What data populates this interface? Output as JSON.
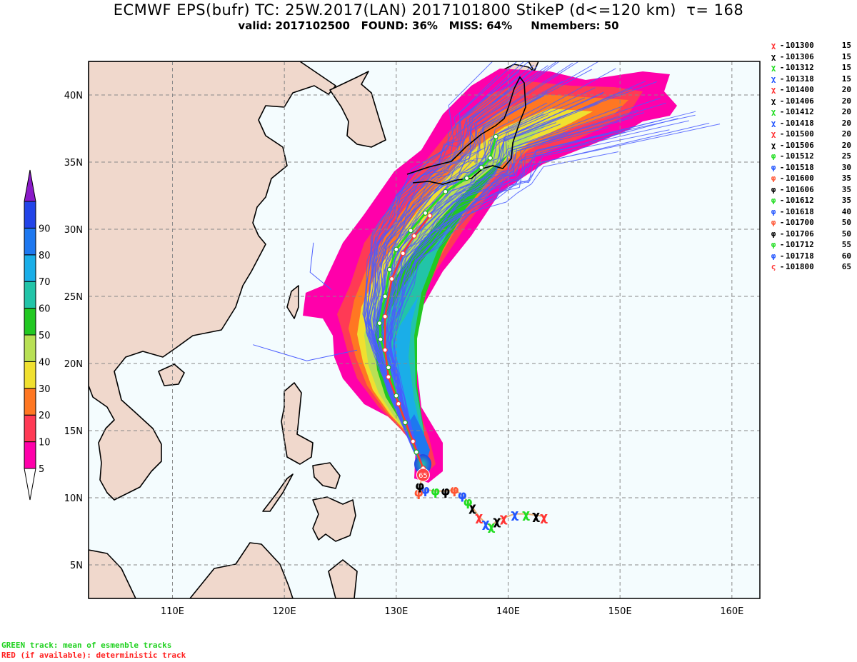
{
  "header": {
    "title": "ECMWF EPS(bufr) TC: 25W.2017(LAN) 2017101800 StikeP (d<=120 km)  τ= 168",
    "subtitle": "valid: 2017102500   FOUND: 36%   MISS: 64%     Nmembers: 50"
  },
  "colorbar": {
    "levels": [
      {
        "label": "5",
        "color": "#ff00aa"
      },
      {
        "label": "10",
        "color": "#ff3a55"
      },
      {
        "label": "20",
        "color": "#ff7722"
      },
      {
        "label": "30",
        "color": "#f0e030"
      },
      {
        "label": "40",
        "color": "#b8e055"
      },
      {
        "label": "50",
        "color": "#22c822"
      },
      {
        "label": "60",
        "color": "#22c4a8"
      },
      {
        "label": "70",
        "color": "#1aaee8"
      },
      {
        "label": "80",
        "color": "#1e78f0"
      },
      {
        "label": "90",
        "color": "#2244e8"
      }
    ],
    "top_color": "#8a1ac8"
  },
  "map": {
    "ocean_color": "#f4fcfe",
    "land_color": "#f0d8cc",
    "lat_ticks": [
      "5N",
      "10N",
      "15N",
      "20N",
      "25N",
      "30N",
      "35N",
      "40N"
    ],
    "lon_ticks": [
      "110E",
      "120E",
      "130E",
      "140E",
      "150E",
      "160E"
    ]
  },
  "legend": {
    "entries": [
      {
        "time": "101300",
        "wind": "15",
        "color": "#ff3333",
        "glyph": "χ"
      },
      {
        "time": "101306",
        "wind": "15",
        "color": "#000000",
        "glyph": "χ"
      },
      {
        "time": "101312",
        "wind": "15",
        "color": "#22dd22",
        "glyph": "χ"
      },
      {
        "time": "101318",
        "wind": "15",
        "color": "#2255ff",
        "glyph": "χ"
      },
      {
        "time": "101400",
        "wind": "20",
        "color": "#ff3333",
        "glyph": "χ"
      },
      {
        "time": "101406",
        "wind": "20",
        "color": "#000000",
        "glyph": "χ"
      },
      {
        "time": "101412",
        "wind": "20",
        "color": "#22dd22",
        "glyph": "χ"
      },
      {
        "time": "101418",
        "wind": "20",
        "color": "#2255ff",
        "glyph": "χ"
      },
      {
        "time": "101500",
        "wind": "20",
        "color": "#ff3333",
        "glyph": "χ"
      },
      {
        "time": "101506",
        "wind": "20",
        "color": "#000000",
        "glyph": "χ"
      },
      {
        "time": "101512",
        "wind": "25",
        "color": "#22dd22",
        "glyph": "φ"
      },
      {
        "time": "101518",
        "wind": "30",
        "color": "#2255ff",
        "glyph": "φ"
      },
      {
        "time": "101600",
        "wind": "35",
        "color": "#ff5533",
        "glyph": "φ"
      },
      {
        "time": "101606",
        "wind": "35",
        "color": "#000000",
        "glyph": "φ"
      },
      {
        "time": "101612",
        "wind": "35",
        "color": "#22dd22",
        "glyph": "φ"
      },
      {
        "time": "101618",
        "wind": "40",
        "color": "#2255ff",
        "glyph": "φ"
      },
      {
        "time": "101700",
        "wind": "50",
        "color": "#ff5533",
        "glyph": "φ"
      },
      {
        "time": "101706",
        "wind": "50",
        "color": "#000000",
        "glyph": "φ"
      },
      {
        "time": "101712",
        "wind": "55",
        "color": "#22dd22",
        "glyph": "φ"
      },
      {
        "time": "101718",
        "wind": "60",
        "color": "#2255ff",
        "glyph": "φ"
      },
      {
        "time": "101800",
        "wind": "65",
        "color": "#ff3333",
        "glyph": "ς"
      }
    ]
  },
  "observed_track": [
    [
      143.2,
      8.6
    ],
    [
      142.5,
      8.7
    ],
    [
      141.6,
      8.8
    ],
    [
      140.6,
      8.8
    ],
    [
      139.6,
      8.5
    ],
    [
      139.0,
      8.3
    ],
    [
      138.5,
      7.9
    ],
    [
      138.0,
      8.1
    ],
    [
      137.4,
      8.6
    ],
    [
      136.8,
      9.3
    ],
    [
      136.4,
      9.7
    ],
    [
      135.9,
      10.2
    ],
    [
      135.2,
      10.6
    ],
    [
      134.4,
      10.5
    ],
    [
      133.5,
      10.5
    ],
    [
      132.6,
      10.6
    ],
    [
      132.0,
      10.4
    ],
    [
      132.1,
      10.9
    ],
    [
      132.4,
      11.7
    ]
  ],
  "current_position": {
    "label": "65",
    "lon": 132.4,
    "lat": 11.7
  },
  "ensemble_mean_track": [
    [
      132.4,
      12.2
    ],
    [
      131.8,
      13.4
    ],
    [
      130.8,
      15.6
    ],
    [
      130.0,
      17.6
    ],
    [
      129.3,
      19.7
    ],
    [
      128.6,
      21.8
    ],
    [
      128.5,
      23.0
    ],
    [
      129.0,
      25.0
    ],
    [
      129.4,
      27.0
    ],
    [
      130.0,
      28.5
    ],
    [
      131.3,
      29.9
    ],
    [
      132.6,
      31.2
    ],
    [
      134.4,
      32.8
    ],
    [
      136.3,
      33.8
    ],
    [
      137.6,
      34.6
    ],
    [
      138.4,
      35.3
    ],
    [
      138.9,
      36.9
    ]
  ],
  "deterministic_track": [
    [
      132.4,
      12.2
    ],
    [
      131.5,
      14.2
    ],
    [
      130.2,
      17.0
    ],
    [
      129.3,
      19.0
    ],
    [
      129.0,
      21.0
    ],
    [
      129.0,
      23.5
    ],
    [
      129.6,
      26.3
    ],
    [
      130.6,
      28.2
    ],
    [
      131.6,
      29.5
    ],
    [
      133.0,
      31.0
    ]
  ],
  "footer": {
    "green_note": "GREEN track: mean of esmenble tracks",
    "red_note": "RED (if available): deterministic track"
  }
}
